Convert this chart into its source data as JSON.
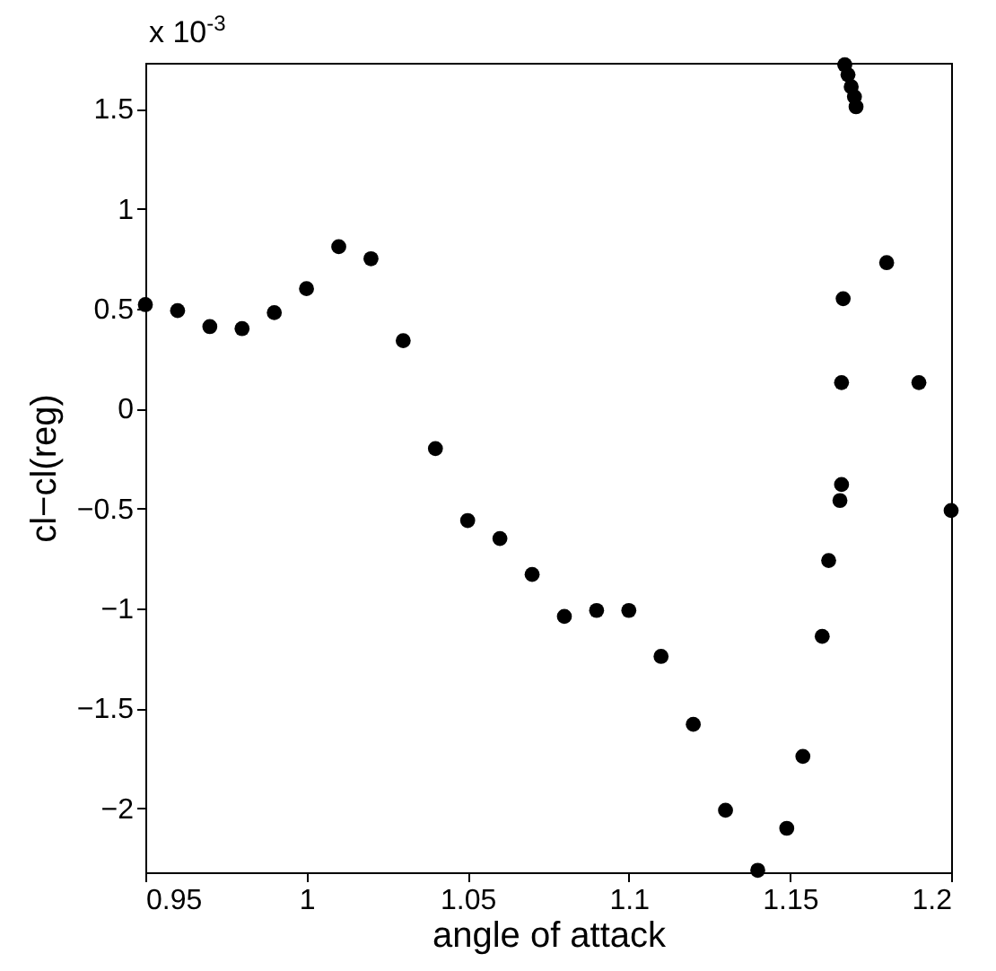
{
  "chart_data": {
    "type": "scatter",
    "xlabel": "angle of attack",
    "ylabel": "cl−cl(reg)",
    "annotations": [
      "x 10$^{-3}$"
    ],
    "x": [
      0.95,
      0.96,
      0.97,
      0.98,
      0.99,
      1.0,
      1.01,
      1.02,
      1.03,
      1.04,
      1.05,
      1.06,
      1.07,
      1.08,
      1.09,
      1.1,
      1.11,
      1.12,
      1.13,
      1.14,
      1.149,
      1.154,
      1.16,
      1.162,
      1.1655,
      1.166,
      1.166,
      1.1665,
      1.167,
      1.168,
      1.169,
      1.17,
      1.1705,
      1.18,
      1.19,
      1.2
    ],
    "series": [
      {
        "color": "#000000",
        "values": [
          0.52,
          0.49,
          0.41,
          0.4,
          0.48,
          0.6,
          0.81,
          0.75,
          0.34,
          -0.2,
          -0.56,
          -0.65,
          -0.83,
          -1.04,
          -1.01,
          -1.01,
          -1.24,
          -1.58,
          -2.01,
          -2.31,
          -2.1,
          -1.74,
          -1.14,
          -0.76,
          -0.46,
          -0.38,
          0.13,
          0.55,
          1.72,
          1.67,
          1.61,
          1.56,
          1.51,
          0.73,
          0.13,
          -0.51
        ]
      }
    ],
    "xlim": [
      0.95,
      1.2
    ],
    "xticks": [
      0.95,
      1,
      1.05,
      1.1,
      1.15,
      1.2
    ],
    "ylim": [
      -2.32,
      1.73
    ],
    "yticks": [
      -2,
      -1.5,
      -1,
      -0.5,
      0,
      0.5,
      1,
      1.5
    ],
    "grid": false,
    "legend": false,
    "marker": "circle"
  }
}
